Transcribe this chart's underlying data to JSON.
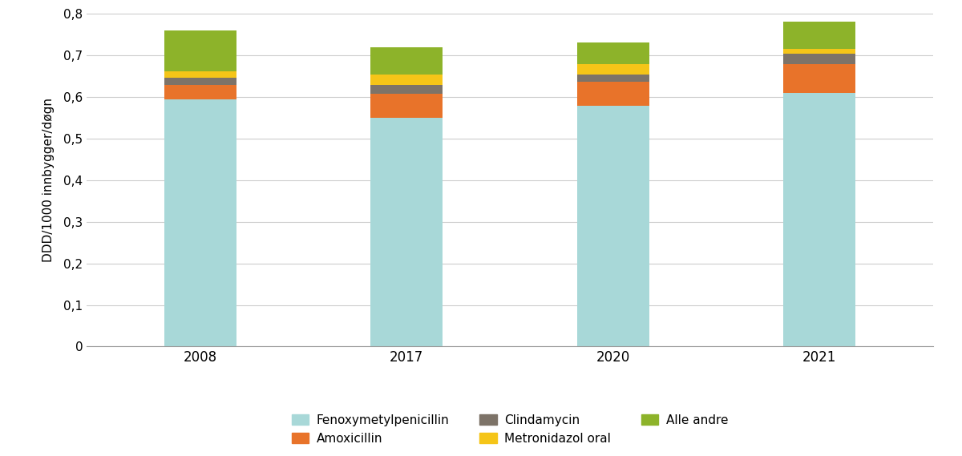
{
  "years": [
    "2008",
    "2017",
    "2020",
    "2021"
  ],
  "series": {
    "Fenoxymetylpenicillin": [
      0.595,
      0.55,
      0.578,
      0.61
    ],
    "Amoxicillin": [
      0.033,
      0.058,
      0.058,
      0.068
    ],
    "Clindamycin": [
      0.018,
      0.02,
      0.018,
      0.025
    ],
    "Metronidazol oral": [
      0.015,
      0.025,
      0.025,
      0.012
    ],
    "Alle andre": [
      0.099,
      0.067,
      0.051,
      0.065
    ]
  },
  "colors": {
    "Fenoxymetylpenicillin": "#a8d8d8",
    "Amoxicillin": "#e8732a",
    "Clindamycin": "#7d7368",
    "Metronidazol oral": "#f5c518",
    "Alle andre": "#8db32a"
  },
  "ylabel": "DDD/1000 innbygger/døgn",
  "ylim": [
    0,
    0.8
  ],
  "yticks": [
    0,
    0.1,
    0.2,
    0.3,
    0.4,
    0.5,
    0.6,
    0.7,
    0.8
  ],
  "ytick_labels": [
    "0",
    "0,1",
    "0,2",
    "0,3",
    "0,4",
    "0,5",
    "0,6",
    "0,7",
    "0,8"
  ],
  "bar_width": 0.35,
  "background_color": "#ffffff",
  "grid_color": "#cccccc",
  "legend_order": [
    "Fenoxymetylpenicillin",
    "Amoxicillin",
    "Clindamycin",
    "Metronidazol oral",
    "Alle andre"
  ]
}
